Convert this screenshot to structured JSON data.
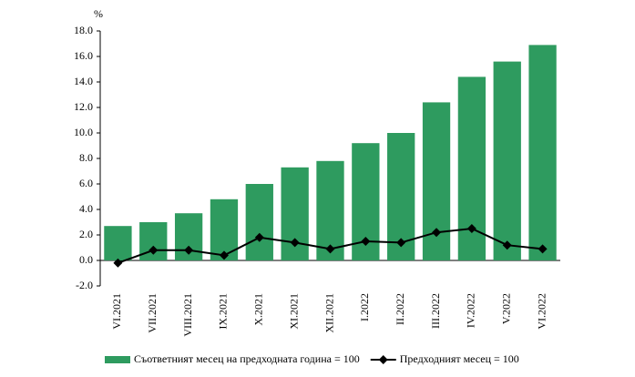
{
  "chart_data": {
    "type": "bar_line",
    "y_unit": "%",
    "categories": [
      "VI.2021",
      "VII.2021",
      "VIII.2021",
      "IX.2021",
      "X.2021",
      "XI.2021",
      "XII.2021",
      "I.2022",
      "II.2022",
      "III.2022",
      "IV.2022",
      "V.2022",
      "VI.2022"
    ],
    "series": [
      {
        "name": "Съответният месец на предходната година = 100",
        "type": "bar",
        "color": "#2e9b5f",
        "values": [
          2.7,
          3.0,
          3.7,
          4.8,
          6.0,
          7.3,
          7.8,
          9.2,
          10.0,
          12.4,
          14.4,
          15.6,
          16.9
        ]
      },
      {
        "name": "Предходният месец = 100",
        "type": "line",
        "color": "#000000",
        "values": [
          -0.2,
          0.8,
          0.8,
          0.4,
          1.8,
          1.4,
          0.9,
          1.5,
          1.4,
          2.2,
          2.5,
          1.2,
          0.9
        ]
      }
    ],
    "ylim": [
      -2,
      18
    ],
    "yticks": [
      {
        "value": -2,
        "label": "-2.0"
      },
      {
        "value": 0,
        "label": "0.0"
      },
      {
        "value": 2,
        "label": "2.0"
      },
      {
        "value": 4,
        "label": "4.0"
      },
      {
        "value": 6,
        "label": "6.0"
      },
      {
        "value": 8,
        "label": "8.0"
      },
      {
        "value": 10,
        "label": "10.0"
      },
      {
        "value": 12,
        "label": "12.0"
      },
      {
        "value": 14,
        "label": "14.0"
      },
      {
        "value": 16,
        "label": "16.0"
      },
      {
        "value": 18,
        "label": "18.0"
      }
    ],
    "grid": false,
    "legend": "bottom"
  }
}
